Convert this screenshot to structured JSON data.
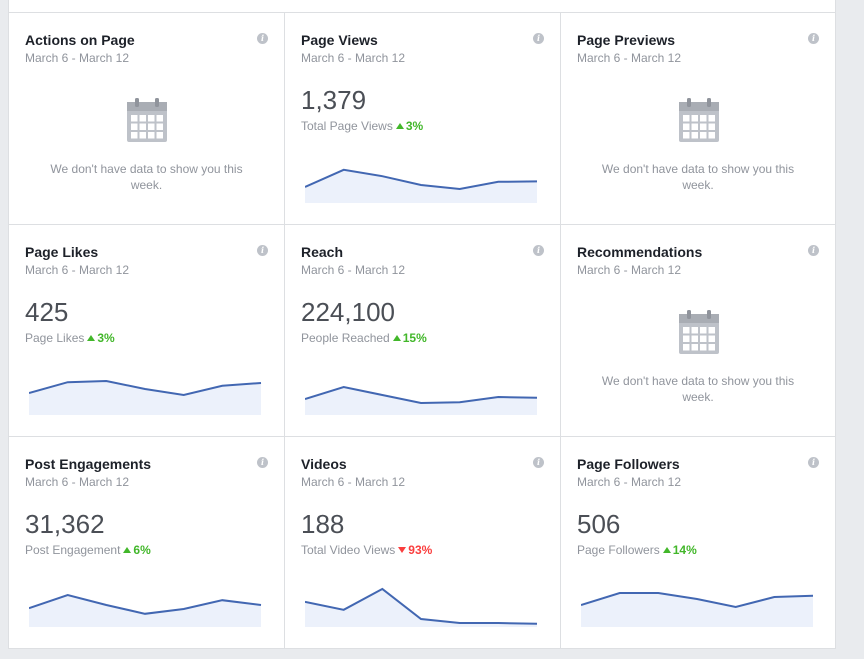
{
  "cards": [
    {
      "title": "Actions on Page",
      "date": "March 6 - March 12",
      "empty": true,
      "empty_text": "We don't have data to show you this week."
    },
    {
      "title": "Page Views",
      "date": "March 6 - March 12",
      "empty": false,
      "value": "1,379",
      "label": "Total Page Views",
      "change": "3%",
      "direction": "up",
      "chart_data": {
        "type": "area",
        "values": [
          0.35,
          0.78,
          0.62,
          0.4,
          0.3,
          0.48,
          0.49
        ]
      }
    },
    {
      "title": "Page Previews",
      "date": "March 6 - March 12",
      "empty": true,
      "empty_text": "We don't have data to show you this week."
    },
    {
      "title": "Page Likes",
      "date": "March 6 - March 12",
      "empty": false,
      "value": "425",
      "label": "Page Likes",
      "change": "3%",
      "direction": "up",
      "chart_data": {
        "type": "area",
        "values": [
          0.5,
          0.77,
          0.8,
          0.6,
          0.45,
          0.68,
          0.75
        ]
      }
    },
    {
      "title": "Reach",
      "date": "March 6 - March 12",
      "empty": false,
      "value": "224,100",
      "label": "People Reached",
      "change": "15%",
      "direction": "up",
      "chart_data": {
        "type": "area",
        "values": [
          0.35,
          0.65,
          0.45,
          0.25,
          0.27,
          0.4,
          0.38
        ]
      }
    },
    {
      "title": "Recommendations",
      "date": "March 6 - March 12",
      "empty": true,
      "empty_text": "We don't have data to show you this week."
    },
    {
      "title": "Post Engagements",
      "date": "March 6 - March 12",
      "empty": false,
      "value": "31,362",
      "label": "Post Engagement",
      "change": "6%",
      "direction": "up",
      "chart_data": {
        "type": "area",
        "values": [
          0.42,
          0.75,
          0.5,
          0.28,
          0.4,
          0.62,
          0.5
        ]
      }
    },
    {
      "title": "Videos",
      "date": "March 6 - March 12",
      "empty": false,
      "value": "188",
      "label": "Total Video Views",
      "change": "93%",
      "direction": "down",
      "chart_data": {
        "type": "area",
        "values": [
          0.58,
          0.38,
          0.9,
          0.15,
          0.05,
          0.05,
          0.03
        ]
      }
    },
    {
      "title": "Page Followers",
      "date": "March 6 - March 12",
      "empty": false,
      "value": "506",
      "label": "Page Followers",
      "change": "14%",
      "direction": "up",
      "chart_data": {
        "type": "area",
        "values": [
          0.5,
          0.8,
          0.8,
          0.65,
          0.45,
          0.7,
          0.73
        ]
      }
    }
  ],
  "colors": {
    "line": "#4267b2",
    "fill": "#ecf1fb",
    "up": "#42b72a",
    "down": "#fa3e3e",
    "icon": "#bec2c9"
  },
  "icons": {
    "info": "info-icon",
    "empty": "calendar-icon"
  }
}
